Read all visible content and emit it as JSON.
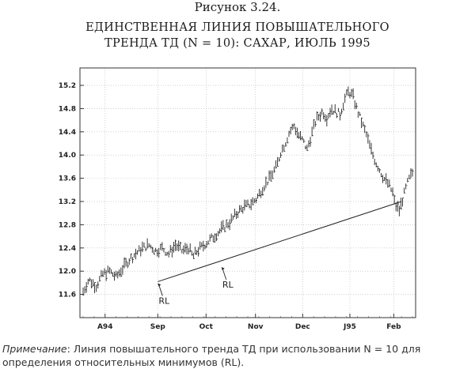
{
  "figure_label": "Рисунок 3.24.",
  "title_lines": [
    "ЕДИНСТВЕННАЯ ЛИНИЯ ПОВЫШАТЕЛЬНОГО",
    "ТРЕНДА ТД (N = 10): САХАР, ИЮЛЬ 1995"
  ],
  "note": {
    "lead": "Примечание",
    "text": ": Линия повышательного тренда ТД при использовании N = 10 для определения относительных минимумов (RL)."
  },
  "chart_data": {
    "type": "line",
    "subtype": "ohlc-bars",
    "title": "ЕДИНСТВЕННАЯ ЛИНИЯ ПОВЫШАТЕЛЬНОГО ТРЕНДА ТД (N = 10): САХАР, ИЮЛЬ 1995",
    "y_ticks": [
      11.6,
      12.0,
      12.4,
      12.8,
      13.2,
      13.6,
      14.0,
      14.4,
      14.8,
      15.2
    ],
    "ylim": [
      11.2,
      15.5
    ],
    "x_labels": [
      {
        "label": "A94",
        "i": 20
      },
      {
        "label": "Sep",
        "i": 68
      },
      {
        "label": "Oct",
        "i": 112
      },
      {
        "label": "Nov",
        "i": 157
      },
      {
        "label": "Dec",
        "i": 200
      },
      {
        "label": "J95",
        "i": 243
      },
      {
        "label": "Feb",
        "i": 283
      }
    ],
    "x_count": 300,
    "grid": true,
    "price_path": [
      [
        0,
        11.65
      ],
      [
        5,
        11.85
      ],
      [
        12,
        11.75
      ],
      [
        18,
        11.95
      ],
      [
        24,
        12.0
      ],
      [
        30,
        11.9
      ],
      [
        36,
        12.05
      ],
      [
        42,
        12.2
      ],
      [
        48,
        12.3
      ],
      [
        54,
        12.4
      ],
      [
        60,
        12.45
      ],
      [
        66,
        12.35
      ],
      [
        72,
        12.4
      ],
      [
        78,
        12.3
      ],
      [
        84,
        12.45
      ],
      [
        90,
        12.35
      ],
      [
        96,
        12.4
      ],
      [
        100,
        12.25
      ],
      [
        104,
        12.35
      ],
      [
        110,
        12.45
      ],
      [
        116,
        12.55
      ],
      [
        122,
        12.65
      ],
      [
        128,
        12.75
      ],
      [
        134,
        12.85
      ],
      [
        140,
        13.0
      ],
      [
        146,
        13.1
      ],
      [
        152,
        13.15
      ],
      [
        158,
        13.25
      ],
      [
        164,
        13.45
      ],
      [
        170,
        13.6
      ],
      [
        176,
        13.8
      ],
      [
        180,
        14.05
      ],
      [
        184,
        14.2
      ],
      [
        188,
        14.4
      ],
      [
        192,
        14.5
      ],
      [
        196,
        14.35
      ],
      [
        200,
        14.25
      ],
      [
        204,
        14.1
      ],
      [
        208,
        14.35
      ],
      [
        212,
        14.6
      ],
      [
        218,
        14.75
      ],
      [
        222,
        14.65
      ],
      [
        226,
        14.8
      ],
      [
        230,
        14.75
      ],
      [
        234,
        14.7
      ],
      [
        238,
        14.95
      ],
      [
        242,
        15.1
      ],
      [
        246,
        15.0
      ],
      [
        250,
        14.75
      ],
      [
        254,
        14.55
      ],
      [
        258,
        14.35
      ],
      [
        262,
        14.1
      ],
      [
        266,
        13.9
      ],
      [
        270,
        13.75
      ],
      [
        274,
        13.6
      ],
      [
        278,
        13.5
      ],
      [
        282,
        13.35
      ],
      [
        284,
        13.15
      ],
      [
        288,
        13.05
      ],
      [
        292,
        13.3
      ],
      [
        296,
        13.55
      ],
      [
        300,
        13.7
      ]
    ],
    "trendline": {
      "from": [
        68,
        11.82
      ],
      "to": [
        290,
        13.2
      ]
    },
    "annotations": [
      {
        "text": "RL",
        "i": 68,
        "value": 11.82
      },
      {
        "text": "RL",
        "i": 126,
        "value": 12.1
      }
    ]
  }
}
